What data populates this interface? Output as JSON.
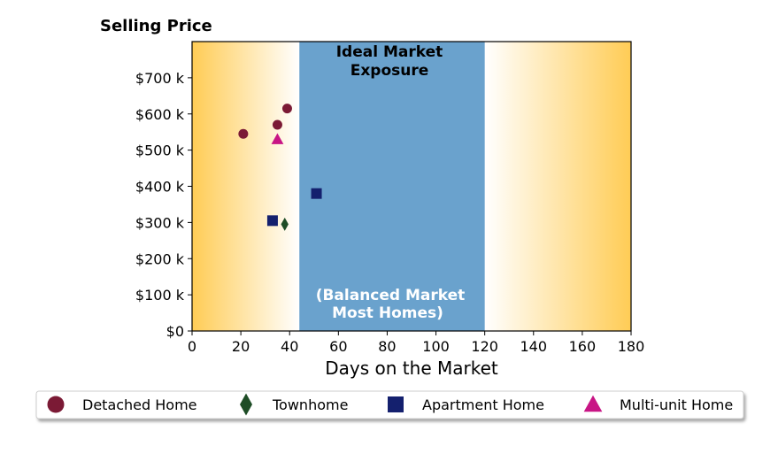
{
  "chart_data": {
    "type": "scatter",
    "title": "",
    "ylabel": "Selling Price",
    "xlabel": "Days on the Market",
    "xlim": [
      0,
      180
    ],
    "ylim": [
      0,
      800000
    ],
    "x_ticks": [
      0,
      20,
      40,
      60,
      80,
      100,
      120,
      140,
      160,
      180
    ],
    "y_ticks": [
      {
        "value": 0,
        "label": "$0"
      },
      {
        "value": 100000,
        "label": "$100 k"
      },
      {
        "value": 200000,
        "label": "$200 k"
      },
      {
        "value": 300000,
        "label": "$300 k"
      },
      {
        "value": 400000,
        "label": "$400 k"
      },
      {
        "value": 500000,
        "label": "$500 k"
      },
      {
        "value": 600000,
        "label": "$600 k"
      },
      {
        "value": 700000,
        "label": "$700 k"
      }
    ],
    "grid": false,
    "shaded_region": {
      "x_range": [
        44,
        120
      ],
      "color": "#6aa2cd",
      "label_top": [
        "Ideal Market",
        "Exposure"
      ],
      "label_bottom": [
        "(Balanced Market",
        "Most Homes)"
      ]
    },
    "background_gradient": {
      "edge_color": "#ffcc55",
      "center_color": "#ffffff"
    },
    "series": [
      {
        "name": "Detached Home",
        "marker": "circle",
        "color": "#7b1a35",
        "points": [
          {
            "x": 21,
            "y": 545000
          },
          {
            "x": 35,
            "y": 570000
          },
          {
            "x": 39,
            "y": 615000
          }
        ]
      },
      {
        "name": "Townhome",
        "marker": "diamond",
        "color": "#1e4d26",
        "points": [
          {
            "x": 38,
            "y": 295000
          }
        ]
      },
      {
        "name": "Apartment Home",
        "marker": "square",
        "color": "#14206e",
        "points": [
          {
            "x": 33,
            "y": 305000
          },
          {
            "x": 51,
            "y": 380000
          }
        ]
      },
      {
        "name": "Multi-unit Home",
        "marker": "triangle",
        "color": "#c81585",
        "points": [
          {
            "x": 35,
            "y": 530000
          }
        ]
      }
    ],
    "legend_position": "bottom"
  }
}
